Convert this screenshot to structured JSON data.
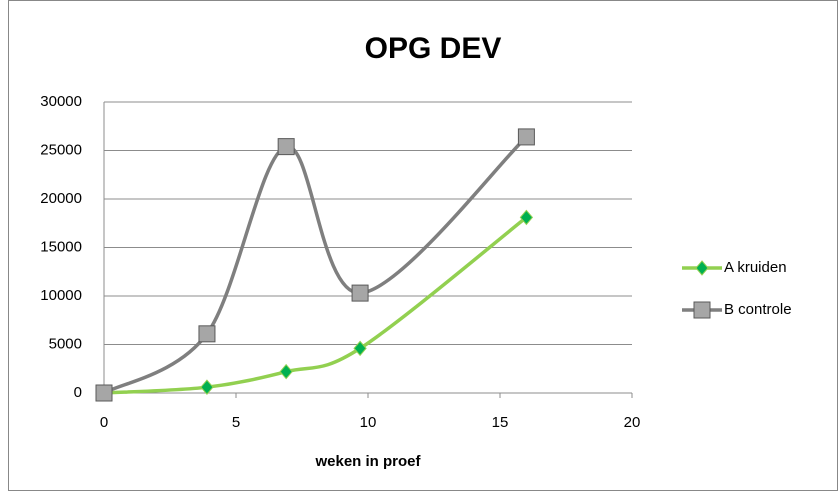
{
  "chart_data": {
    "type": "line",
    "smooth": true,
    "title": "OPG DEV",
    "x_label": "weken in proef",
    "x": [
      0,
      3.9,
      6.9,
      9.7,
      16
    ],
    "series": [
      {
        "name": "A kruiden",
        "color": "#92d050",
        "marker_color": "#00b050",
        "marker": "diamond",
        "values": [
          0,
          600,
          2200,
          4600,
          18100
        ]
      },
      {
        "name": "B controle",
        "color": "#7f7f7f",
        "marker_color": "#a6a6a6",
        "marker": "square",
        "values": [
          0,
          6100,
          25400,
          10300,
          26400
        ]
      }
    ],
    "xlim": [
      0,
      20
    ],
    "xticks": [
      0,
      5,
      10,
      15,
      20
    ],
    "ylim": [
      0,
      30000
    ],
    "yticks": [
      0,
      5000,
      10000,
      15000,
      20000,
      25000,
      30000
    ],
    "grid": true,
    "legend": "right"
  }
}
